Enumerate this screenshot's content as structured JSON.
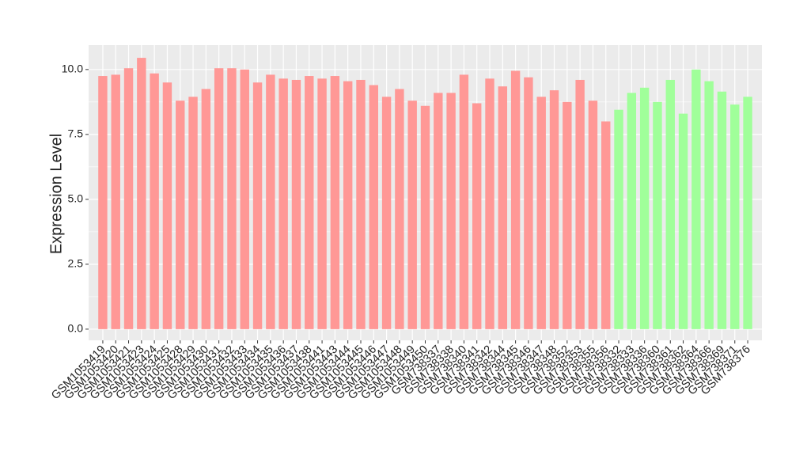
{
  "chart_data": {
    "type": "bar",
    "y_label": "Expression Level",
    "categories": [
      "GSM1053419",
      "GSM1053420",
      "GSM1053421",
      "GSM1053423",
      "GSM1053424",
      "GSM1053425",
      "GSM1053428",
      "GSM1053429",
      "GSM1053430",
      "GSM1053431",
      "GSM1053432",
      "GSM1053433",
      "GSM1053434",
      "GSM1053435",
      "GSM1053436",
      "GSM1053437",
      "GSM1053438",
      "GSM1053441",
      "GSM1053443",
      "GSM1053444",
      "GSM1053445",
      "GSM1053446",
      "GSM1053447",
      "GSM1053448",
      "GSM1053449",
      "GSM1053450",
      "GSM738337",
      "GSM738338",
      "GSM738340",
      "GSM738341",
      "GSM738342",
      "GSM738344",
      "GSM738345",
      "GSM738346",
      "GSM738347",
      "GSM738348",
      "GSM738352",
      "GSM738353",
      "GSM738355",
      "GSM738356",
      "GSM738332",
      "GSM738333",
      "GSM738336",
      "GSM738360",
      "GSM738361",
      "GSM738362",
      "GSM738364",
      "GSM738366",
      "GSM738369",
      "GSM738371",
      "GSM738376"
    ],
    "values": [
      9.75,
      9.8,
      10.05,
      10.45,
      9.85,
      9.5,
      8.8,
      8.95,
      9.25,
      10.05,
      10.05,
      10.0,
      9.5,
      9.8,
      9.65,
      9.6,
      9.75,
      9.65,
      9.75,
      9.55,
      9.6,
      9.4,
      8.95,
      9.25,
      8.8,
      8.6,
      9.1,
      9.1,
      9.8,
      8.7,
      9.65,
      9.35,
      9.95,
      9.7,
      8.95,
      9.2,
      8.75,
      9.6,
      8.8,
      8.0,
      8.45,
      9.1,
      9.3,
      8.75,
      9.6,
      8.3,
      10.0,
      9.55,
      9.15,
      8.65,
      8.95
    ],
    "bar_colors": [
      "#ff9896",
      "#ff9896",
      "#ff9896",
      "#ff9896",
      "#ff9896",
      "#ff9896",
      "#ff9896",
      "#ff9896",
      "#ff9896",
      "#ff9896",
      "#ff9896",
      "#ff9896",
      "#ff9896",
      "#ff9896",
      "#ff9896",
      "#ff9896",
      "#ff9896",
      "#ff9896",
      "#ff9896",
      "#ff9896",
      "#ff9896",
      "#ff9896",
      "#ff9896",
      "#ff9896",
      "#ff9896",
      "#ff9896",
      "#ff9896",
      "#ff9896",
      "#ff9896",
      "#ff9896",
      "#ff9896",
      "#ff9896",
      "#ff9896",
      "#ff9896",
      "#ff9896",
      "#ff9896",
      "#ff9896",
      "#ff9896",
      "#ff9896",
      "#ff9896",
      "#a0ff9a",
      "#a0ff9a",
      "#a0ff9a",
      "#a0ff9a",
      "#a0ff9a",
      "#a0ff9a",
      "#a0ff9a",
      "#a0ff9a",
      "#a0ff9a",
      "#a0ff9a",
      "#a0ff9a"
    ],
    "ylim": [
      -0.43,
      10.94
    ],
    "yticks": [
      {
        "value": 0,
        "label": "0.0"
      },
      2.5,
      {
        "value": 5,
        "label": "5.0"
      },
      7.5,
      {
        "value": 10,
        "label": "10.0"
      }
    ],
    "grid": true
  }
}
